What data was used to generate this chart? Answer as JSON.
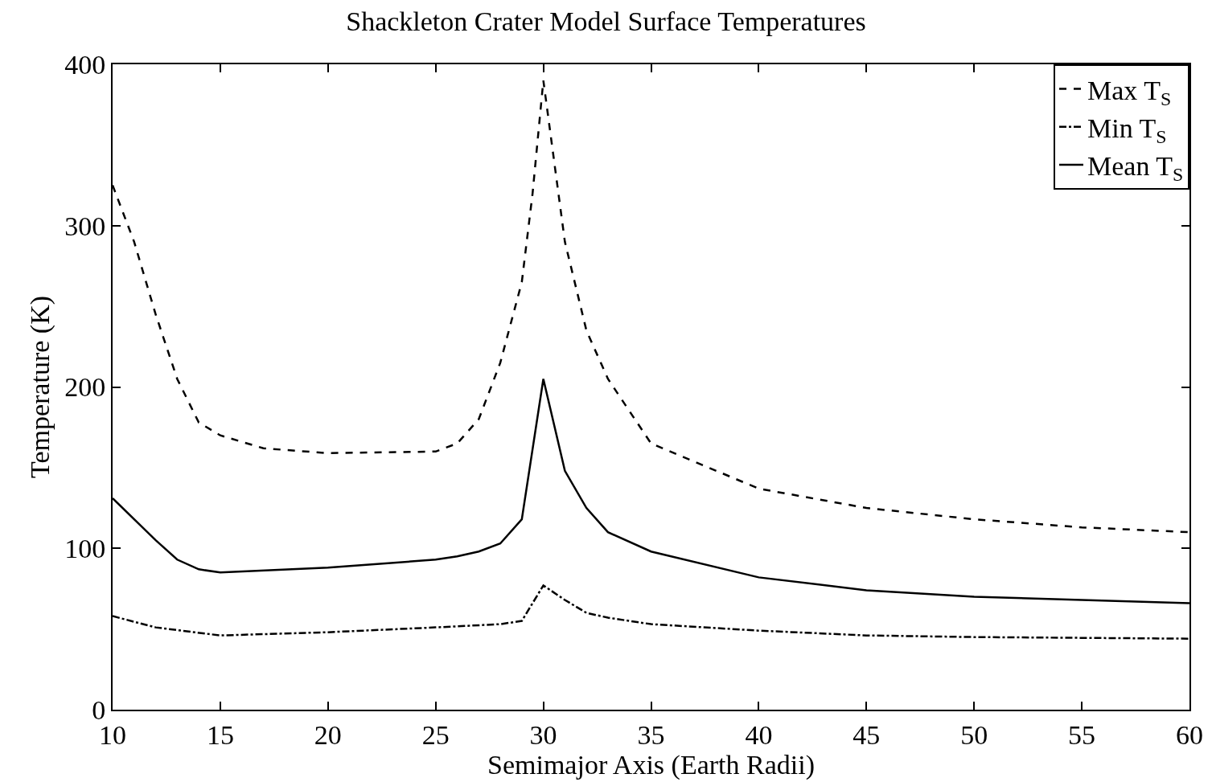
{
  "chart_data": {
    "type": "line",
    "title": "Shackleton Crater Model Surface Temperatures",
    "xlabel": "Semimajor Axis (Earth Radii)",
    "ylabel": "Temperature (K)",
    "xlim": [
      10,
      60
    ],
    "xticks": [
      10,
      15,
      20,
      25,
      30,
      35,
      40,
      45,
      50,
      55,
      60
    ],
    "ylim": [
      0,
      400
    ],
    "yticks": [
      0,
      100,
      200,
      300,
      400
    ],
    "grid": false,
    "legend": "top right",
    "marker": "none",
    "series": [
      {
        "name": "Max T$_{S}$",
        "color": "#000000",
        "line_style": "dashed",
        "x": [
          10,
          11,
          12,
          13,
          14,
          15,
          17,
          20,
          25,
          26,
          27,
          28,
          29,
          29.5,
          30,
          30.5,
          31,
          32,
          33,
          35,
          40,
          45,
          50,
          55,
          60
        ],
        "values": [
          325,
          290,
          245,
          205,
          178,
          170,
          162,
          159,
          160,
          165,
          180,
          215,
          265,
          320,
          390,
          340,
          290,
          235,
          205,
          165,
          137,
          125,
          118,
          113,
          110
        ]
      },
      {
        "name": "Min T$_{S}$",
        "color": "#000000",
        "line_style": "dashdot",
        "x": [
          10,
          12,
          15,
          20,
          25,
          28,
          29,
          30,
          31,
          32,
          33,
          35,
          40,
          45,
          50,
          60
        ],
        "values": [
          58,
          51,
          46,
          48,
          51,
          53,
          55,
          77,
          68,
          60,
          57,
          53,
          49,
          46,
          45,
          44
        ]
      },
      {
        "name": "Mean T$_{S}$",
        "color": "#000000",
        "line_style": "solid",
        "x": [
          10,
          12,
          13,
          14,
          15,
          20,
          25,
          26,
          27,
          28,
          29,
          30,
          31,
          32,
          33,
          35,
          40,
          45,
          50,
          55,
          60
        ],
        "values": [
          131,
          105,
          93,
          87,
          85,
          88,
          93,
          95,
          98,
          103,
          118,
          205,
          148,
          125,
          110,
          98,
          82,
          74,
          70,
          68,
          66
        ]
      }
    ]
  }
}
